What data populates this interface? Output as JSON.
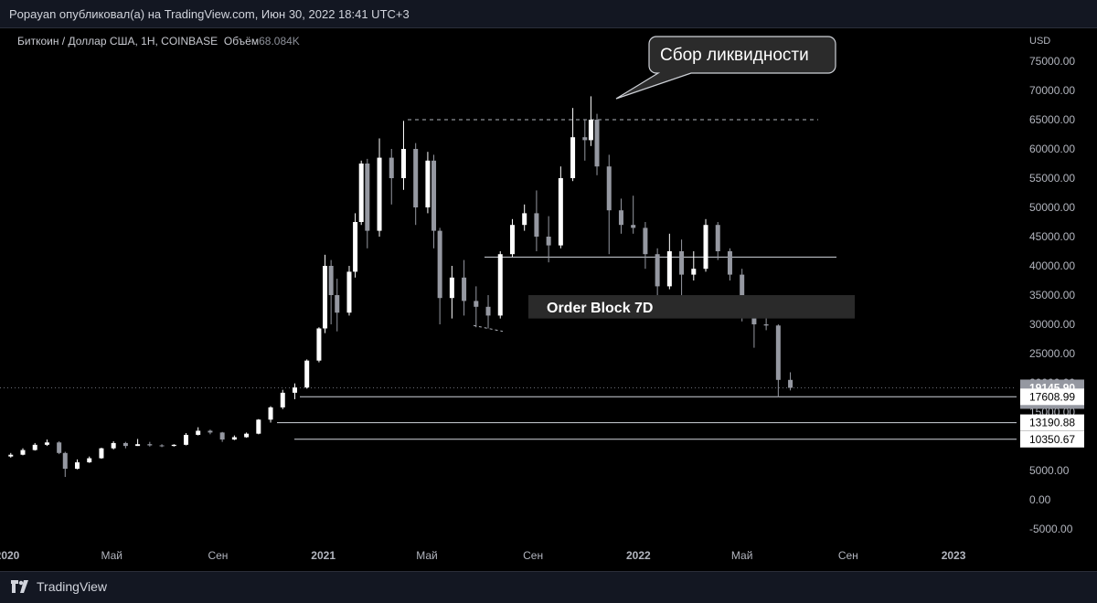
{
  "header": {
    "published": "Popayan опубликовал(а) на TradingView.com, Июн 30, 2022 18:41 UTC+3"
  },
  "legend": {
    "symbol": "Биткоин / Доллар США, 1Н, COINBASE",
    "volume_label": "Объём",
    "volume_value": "68.084K"
  },
  "footer": {
    "brand": "TradingView"
  },
  "colors": {
    "background": "#000000",
    "up": "#ffffff",
    "down": "#9598a1",
    "grid": "#1a1a1a"
  },
  "annotations": {
    "callout": "Сбор ликвидности",
    "order_block": "Order Block 7D"
  },
  "chart_data": {
    "type": "candlestick",
    "title": "Биткоин / Доллар США, 1Н, COINBASE",
    "currency": "USD",
    "ylim": [
      -5000,
      75000
    ],
    "y_ticks": [
      "75000.00",
      "70000.00",
      "65000.00",
      "60000.00",
      "55000.00",
      "50000.00",
      "45000.00",
      "40000.00",
      "35000.00",
      "30000.00",
      "25000.00",
      "20000.00",
      "15000.00",
      "10000.00",
      "5000.00",
      "0.00",
      "-5000.00"
    ],
    "x_ticks": [
      "2020",
      "Май",
      "Сен",
      "2021",
      "Май",
      "Сен",
      "2022",
      "Май",
      "Сен",
      "2023"
    ],
    "x_range": [
      "2020-01-01",
      "2023-03-15"
    ],
    "last_price": {
      "value": "19145.90",
      "countdown": "3d 9h"
    },
    "levels": [
      "17608.99",
      "13190.88",
      "10350.67"
    ],
    "liquidity_high": 65000,
    "support_line": 41500,
    "order_block_range": [
      31000,
      35000
    ],
    "candles": [
      {
        "t": "2020-01-05",
        "o": 7400,
        "h": 8000,
        "l": 7200,
        "c": 7700
      },
      {
        "t": "2020-01-19",
        "o": 7700,
        "h": 8800,
        "l": 7600,
        "c": 8500
      },
      {
        "t": "2020-02-02",
        "o": 8500,
        "h": 9700,
        "l": 8400,
        "c": 9400
      },
      {
        "t": "2020-02-16",
        "o": 9400,
        "h": 10300,
        "l": 9200,
        "c": 9800
      },
      {
        "t": "2020-03-01",
        "o": 9800,
        "h": 10000,
        "l": 7800,
        "c": 8000
      },
      {
        "t": "2020-03-08",
        "o": 8000,
        "h": 8200,
        "l": 3900,
        "c": 5300
      },
      {
        "t": "2020-03-22",
        "o": 5300,
        "h": 6900,
        "l": 5200,
        "c": 6400
      },
      {
        "t": "2020-04-05",
        "o": 6400,
        "h": 7400,
        "l": 6300,
        "c": 7100
      },
      {
        "t": "2020-04-19",
        "o": 7100,
        "h": 8900,
        "l": 7000,
        "c": 8800
      },
      {
        "t": "2020-05-03",
        "o": 8800,
        "h": 10000,
        "l": 8600,
        "c": 9700
      },
      {
        "t": "2020-05-17",
        "o": 9700,
        "h": 9900,
        "l": 8800,
        "c": 9200
      },
      {
        "t": "2020-05-31",
        "o": 9200,
        "h": 10400,
        "l": 9200,
        "c": 9500
      },
      {
        "t": "2020-06-14",
        "o": 9500,
        "h": 9900,
        "l": 9100,
        "c": 9300
      },
      {
        "t": "2020-06-28",
        "o": 9300,
        "h": 9500,
        "l": 9000,
        "c": 9200
      },
      {
        "t": "2020-07-12",
        "o": 9200,
        "h": 9500,
        "l": 9100,
        "c": 9400
      },
      {
        "t": "2020-07-26",
        "o": 9400,
        "h": 11400,
        "l": 9300,
        "c": 11100
      },
      {
        "t": "2020-08-09",
        "o": 11100,
        "h": 12400,
        "l": 11000,
        "c": 11800
      },
      {
        "t": "2020-08-23",
        "o": 11800,
        "h": 12000,
        "l": 11200,
        "c": 11500
      },
      {
        "t": "2020-09-06",
        "o": 11500,
        "h": 11600,
        "l": 9900,
        "c": 10300
      },
      {
        "t": "2020-09-20",
        "o": 10300,
        "h": 11000,
        "l": 10200,
        "c": 10700
      },
      {
        "t": "2020-10-04",
        "o": 10700,
        "h": 11500,
        "l": 10600,
        "c": 11300
      },
      {
        "t": "2020-10-18",
        "o": 11300,
        "h": 13800,
        "l": 11200,
        "c": 13700
      },
      {
        "t": "2020-11-01",
        "o": 13700,
        "h": 16000,
        "l": 13200,
        "c": 15800
      },
      {
        "t": "2020-11-15",
        "o": 15800,
        "h": 18800,
        "l": 15500,
        "c": 18300
      },
      {
        "t": "2020-11-29",
        "o": 18300,
        "h": 19900,
        "l": 17200,
        "c": 19200
      },
      {
        "t": "2020-12-13",
        "o": 19200,
        "h": 24000,
        "l": 19000,
        "c": 23800
      },
      {
        "t": "2020-12-27",
        "o": 23800,
        "h": 29500,
        "l": 23500,
        "c": 29300
      },
      {
        "t": "2021-01-03",
        "o": 29300,
        "h": 41900,
        "l": 28500,
        "c": 40000
      },
      {
        "t": "2021-01-10",
        "o": 40000,
        "h": 41000,
        "l": 30000,
        "c": 35000
      },
      {
        "t": "2021-01-17",
        "o": 35000,
        "h": 37800,
        "l": 28800,
        "c": 32000
      },
      {
        "t": "2021-01-31",
        "o": 32000,
        "h": 40000,
        "l": 31500,
        "c": 39000
      },
      {
        "t": "2021-02-07",
        "o": 39000,
        "h": 49000,
        "l": 38000,
        "c": 47500
      },
      {
        "t": "2021-02-14",
        "o": 47500,
        "h": 58000,
        "l": 47000,
        "c": 57500
      },
      {
        "t": "2021-02-21",
        "o": 57500,
        "h": 58300,
        "l": 43000,
        "c": 46000
      },
      {
        "t": "2021-03-07",
        "o": 46000,
        "h": 61800,
        "l": 45000,
        "c": 58500
      },
      {
        "t": "2021-03-21",
        "o": 58500,
        "h": 60000,
        "l": 50500,
        "c": 55000
      },
      {
        "t": "2021-04-04",
        "o": 55000,
        "h": 64800,
        "l": 53000,
        "c": 60000
      },
      {
        "t": "2021-04-18",
        "o": 60000,
        "h": 61000,
        "l": 47000,
        "c": 50000
      },
      {
        "t": "2021-05-02",
        "o": 50000,
        "h": 59500,
        "l": 49000,
        "c": 58000
      },
      {
        "t": "2021-05-09",
        "o": 58000,
        "h": 59000,
        "l": 43000,
        "c": 46000
      },
      {
        "t": "2021-05-16",
        "o": 46000,
        "h": 46500,
        "l": 30000,
        "c": 34500
      },
      {
        "t": "2021-05-30",
        "o": 34500,
        "h": 40000,
        "l": 31000,
        "c": 38000
      },
      {
        "t": "2021-06-13",
        "o": 38000,
        "h": 41000,
        "l": 31500,
        "c": 34000
      },
      {
        "t": "2021-06-27",
        "o": 34000,
        "h": 36500,
        "l": 29500,
        "c": 33000
      },
      {
        "t": "2021-07-11",
        "o": 33000,
        "h": 35000,
        "l": 29300,
        "c": 31500
      },
      {
        "t": "2021-07-25",
        "o": 31500,
        "h": 42500,
        "l": 31000,
        "c": 42000
      },
      {
        "t": "2021-08-08",
        "o": 42000,
        "h": 48000,
        "l": 41500,
        "c": 47000
      },
      {
        "t": "2021-08-22",
        "o": 47000,
        "h": 50500,
        "l": 46000,
        "c": 49000
      },
      {
        "t": "2021-09-05",
        "o": 49000,
        "h": 52900,
        "l": 42500,
        "c": 45000
      },
      {
        "t": "2021-09-19",
        "o": 45000,
        "h": 48500,
        "l": 40600,
        "c": 43500
      },
      {
        "t": "2021-10-03",
        "o": 43500,
        "h": 57000,
        "l": 43000,
        "c": 55000
      },
      {
        "t": "2021-10-17",
        "o": 55000,
        "h": 67000,
        "l": 54500,
        "c": 62000
      },
      {
        "t": "2021-10-31",
        "o": 62000,
        "h": 65000,
        "l": 58000,
        "c": 61500
      },
      {
        "t": "2021-11-07",
        "o": 61500,
        "h": 69000,
        "l": 60500,
        "c": 65000
      },
      {
        "t": "2021-11-14",
        "o": 65000,
        "h": 66000,
        "l": 55500,
        "c": 57000
      },
      {
        "t": "2021-11-28",
        "o": 57000,
        "h": 59000,
        "l": 42000,
        "c": 49500
      },
      {
        "t": "2021-12-12",
        "o": 49500,
        "h": 51500,
        "l": 45500,
        "c": 47000
      },
      {
        "t": "2021-12-26",
        "o": 47000,
        "h": 52000,
        "l": 45500,
        "c": 46500
      },
      {
        "t": "2022-01-09",
        "o": 46500,
        "h": 47500,
        "l": 39500,
        "c": 42000
      },
      {
        "t": "2022-01-23",
        "o": 42000,
        "h": 43000,
        "l": 33000,
        "c": 36500
      },
      {
        "t": "2022-02-06",
        "o": 36500,
        "h": 45500,
        "l": 36000,
        "c": 42500
      },
      {
        "t": "2022-02-20",
        "o": 42500,
        "h": 44500,
        "l": 34400,
        "c": 38500
      },
      {
        "t": "2022-03-06",
        "o": 38500,
        "h": 42500,
        "l": 37500,
        "c": 39500
      },
      {
        "t": "2022-03-20",
        "o": 39500,
        "h": 48000,
        "l": 39000,
        "c": 47000
      },
      {
        "t": "2022-04-03",
        "o": 47000,
        "h": 47500,
        "l": 41000,
        "c": 42500
      },
      {
        "t": "2022-04-17",
        "o": 42500,
        "h": 43000,
        "l": 37500,
        "c": 38500
      },
      {
        "t": "2022-05-01",
        "o": 38500,
        "h": 39500,
        "l": 30500,
        "c": 31500
      },
      {
        "t": "2022-05-15",
        "o": 31500,
        "h": 32000,
        "l": 26000,
        "c": 30000
      },
      {
        "t": "2022-05-29",
        "o": 30000,
        "h": 32400,
        "l": 29000,
        "c": 29800
      },
      {
        "t": "2022-06-12",
        "o": 29800,
        "h": 30000,
        "l": 17600,
        "c": 20500
      },
      {
        "t": "2022-06-26",
        "o": 20500,
        "h": 21800,
        "l": 18700,
        "c": 19146
      }
    ]
  }
}
